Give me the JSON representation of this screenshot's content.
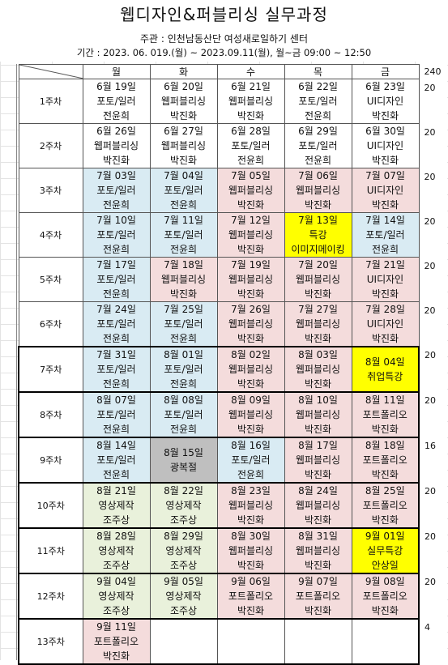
{
  "title": "웹디자인&퍼블리싱 실무과정",
  "organizer": "주관 : 인천남동산단 여성새로일하기 센터",
  "period": "기간 : 2023. 06. 019.(월) ~ 2023.09.11(월), 월~금 09:00 ~ 12:50",
  "days": [
    "월",
    "화",
    "수",
    "목",
    "금"
  ],
  "total_hours": "240",
  "weeks": [
    {
      "label": "1주차",
      "hours": "20",
      "cells": [
        {
          "date": "6월 19일",
          "subject": "포토/일러",
          "teacher": "전윤희",
          "color": "white"
        },
        {
          "date": "6월 20일",
          "subject": "웹퍼블리싱",
          "teacher": "박진화",
          "color": "white"
        },
        {
          "date": "6월 21일",
          "subject": "웹퍼블리싱",
          "teacher": "박진화",
          "color": "white"
        },
        {
          "date": "6월 22일",
          "subject": "포토/일러",
          "teacher": "전윤희",
          "color": "white"
        },
        {
          "date": "6월 23일",
          "subject": "UI디자인",
          "teacher": "박진화",
          "color": "white"
        }
      ]
    },
    {
      "label": "2주차",
      "hours": "20",
      "cells": [
        {
          "date": "6월 26일",
          "subject": "웹퍼블리싱",
          "teacher": "박진화",
          "color": "white"
        },
        {
          "date": "6월 27일",
          "subject": "웹퍼블리싱",
          "teacher": "박진화",
          "color": "white"
        },
        {
          "date": "6월 28일",
          "subject": "포토/일러",
          "teacher": "전윤희",
          "color": "white"
        },
        {
          "date": "6월 29일",
          "subject": "포토/일러",
          "teacher": "전윤희",
          "color": "white"
        },
        {
          "date": "6월 30일",
          "subject": "UI디자인",
          "teacher": "박진화",
          "color": "white"
        }
      ]
    },
    {
      "label": "3주차",
      "hours": "20",
      "cells": [
        {
          "date": "7월 03일",
          "subject": "포토/일러",
          "teacher": "전윤희",
          "color": "blue"
        },
        {
          "date": "7월 04일",
          "subject": "포토/일러",
          "teacher": "전윤희",
          "color": "blue"
        },
        {
          "date": "7월 05일",
          "subject": "웹퍼블리싱",
          "teacher": "박진화",
          "color": "pink"
        },
        {
          "date": "7월 06일",
          "subject": "웹퍼블리싱",
          "teacher": "박진화",
          "color": "pink"
        },
        {
          "date": "7월 07일",
          "subject": "UI디자인",
          "teacher": "박진화",
          "color": "pink"
        }
      ]
    },
    {
      "label": "4주차",
      "hours": "20",
      "cells": [
        {
          "date": "7월 10일",
          "subject": "포토/일러",
          "teacher": "전윤희",
          "color": "blue"
        },
        {
          "date": "7월 11일",
          "subject": "포토/일러",
          "teacher": "전윤희",
          "color": "blue"
        },
        {
          "date": "7월 12일",
          "subject": "웹퍼블리싱",
          "teacher": "박진화",
          "color": "pink"
        },
        {
          "date": "7월 13일",
          "subject": "특강",
          "teacher": "이미지메이킹",
          "color": "yellow"
        },
        {
          "date": "7월 14일",
          "subject": "포토/일러",
          "teacher": "전윤희",
          "color": "blue"
        }
      ]
    },
    {
      "label": "5주차",
      "hours": "20",
      "cells": [
        {
          "date": "7월 17일",
          "subject": "포토/일러",
          "teacher": "전윤희",
          "color": "blue"
        },
        {
          "date": "7월 18일",
          "subject": "웹퍼블리싱",
          "teacher": "박진화",
          "color": "pink"
        },
        {
          "date": "7월 19일",
          "subject": "웹퍼블리싱",
          "teacher": "박진화",
          "color": "pink"
        },
        {
          "date": "7월 20일",
          "subject": "웹퍼블리싱",
          "teacher": "박진화",
          "color": "pink"
        },
        {
          "date": "7월 21일",
          "subject": "UI디자인",
          "teacher": "박진화",
          "color": "pink"
        }
      ]
    },
    {
      "label": "6주차",
      "hours": "20",
      "cells": [
        {
          "date": "7월 24일",
          "subject": "포토/일러",
          "teacher": "전윤희",
          "color": "blue"
        },
        {
          "date": "7월 25일",
          "subject": "포토/일러",
          "teacher": "전윤희",
          "color": "blue"
        },
        {
          "date": "7월 26일",
          "subject": "웹퍼블리싱",
          "teacher": "박진화",
          "color": "pink"
        },
        {
          "date": "7월 27일",
          "subject": "웹퍼블리싱",
          "teacher": "박진화",
          "color": "pink"
        },
        {
          "date": "7월 28일",
          "subject": "UI디자인",
          "teacher": "박진화",
          "color": "pink"
        }
      ]
    },
    {
      "label": "7주차",
      "hours": "20",
      "cells": [
        {
          "date": "7월 31일",
          "subject": "포토/일러",
          "teacher": "전윤희",
          "color": "blue"
        },
        {
          "date": "8월 01일",
          "subject": "포토/일러",
          "teacher": "전윤희",
          "color": "blue"
        },
        {
          "date": "8월 02일",
          "subject": "웹퍼블리싱",
          "teacher": "박진화",
          "color": "pink"
        },
        {
          "date": "8월 03일",
          "subject": "웹퍼블리싱",
          "teacher": "박진화",
          "color": "pink"
        },
        {
          "date": "8월 04일",
          "subject": "취업특강",
          "teacher": "",
          "color": "yellow"
        }
      ]
    },
    {
      "label": "8주차",
      "hours": "20",
      "cells": [
        {
          "date": "8월 07일",
          "subject": "포토/일러",
          "teacher": "전윤희",
          "color": "blue"
        },
        {
          "date": "8월 08일",
          "subject": "포토/일러",
          "teacher": "전윤희",
          "color": "blue"
        },
        {
          "date": "8월 09일",
          "subject": "웹퍼블리싱",
          "teacher": "박진화",
          "color": "pink"
        },
        {
          "date": "8월 10일",
          "subject": "웹퍼블리싱",
          "teacher": "박진화",
          "color": "pink"
        },
        {
          "date": "8월 11일",
          "subject": "포트폴리오",
          "teacher": "박진화",
          "color": "pink"
        }
      ]
    },
    {
      "label": "9주차",
      "hours": "16",
      "cells": [
        {
          "date": "8월 14일",
          "subject": "포토/일러",
          "teacher": "전윤희",
          "color": "blue"
        },
        {
          "date": "8월 15일",
          "subject": "광복절",
          "teacher": "",
          "color": "gray"
        },
        {
          "date": "8월 16일",
          "subject": "포토/일러",
          "teacher": "전윤희",
          "color": "blue"
        },
        {
          "date": "8월 17일",
          "subject": "웹퍼블리싱",
          "teacher": "박진화",
          "color": "pink"
        },
        {
          "date": "8월 18일",
          "subject": "포트폴리오",
          "teacher": "박진화",
          "color": "pink"
        }
      ]
    },
    {
      "label": "10주차",
      "hours": "20",
      "cells": [
        {
          "date": "8월 21일",
          "subject": "영상제작",
          "teacher": "조주상",
          "color": "green"
        },
        {
          "date": "8월 22일",
          "subject": "영상제작",
          "teacher": "조주상",
          "color": "green"
        },
        {
          "date": "8월 23일",
          "subject": "웹퍼블리싱",
          "teacher": "박진화",
          "color": "pink"
        },
        {
          "date": "8월 24일",
          "subject": "웹퍼블리싱",
          "teacher": "박진화",
          "color": "pink"
        },
        {
          "date": "8월 25일",
          "subject": "포트폴리오",
          "teacher": "박진화",
          "color": "pink"
        }
      ]
    },
    {
      "label": "11주차",
      "hours": "20",
      "cells": [
        {
          "date": "8월 28일",
          "subject": "영상제작",
          "teacher": "조주상",
          "color": "green"
        },
        {
          "date": "8월 29일",
          "subject": "영상제작",
          "teacher": "조주상",
          "color": "green"
        },
        {
          "date": "8월 30일",
          "subject": "웹퍼블리싱",
          "teacher": "박진화",
          "color": "pink"
        },
        {
          "date": "8월 31일",
          "subject": "웹퍼블리싱",
          "teacher": "박진화",
          "color": "pink"
        },
        {
          "date": "9월 01일",
          "subject": "실무특강",
          "teacher": "안상일",
          "color": "yellow"
        }
      ]
    },
    {
      "label": "12주차",
      "hours": "20",
      "cells": [
        {
          "date": "9월 04일",
          "subject": "영상제작",
          "teacher": "조주상",
          "color": "green"
        },
        {
          "date": "9월 05일",
          "subject": "영상제작",
          "teacher": "조주상",
          "color": "green"
        },
        {
          "date": "9월 06일",
          "subject": "포트폴리오",
          "teacher": "박진화",
          "color": "pink"
        },
        {
          "date": "9월 07일",
          "subject": "포트폴리오",
          "teacher": "박진화",
          "color": "pink"
        },
        {
          "date": "9월 08일",
          "subject": "포트폴리오",
          "teacher": "박진화",
          "color": "pink"
        }
      ]
    },
    {
      "label": "13주차",
      "hours": "4",
      "cells": [
        {
          "date": "9월 11일",
          "subject": "포트폴리오",
          "teacher": "박진화",
          "color": "pink"
        },
        {
          "date": "",
          "subject": "",
          "teacher": "",
          "color": "empty"
        },
        {
          "date": "",
          "subject": "",
          "teacher": "",
          "color": "empty"
        },
        {
          "date": "",
          "subject": "",
          "teacher": "",
          "color": "empty"
        },
        {
          "date": "",
          "subject": "",
          "teacher": "",
          "color": "empty"
        }
      ]
    }
  ]
}
